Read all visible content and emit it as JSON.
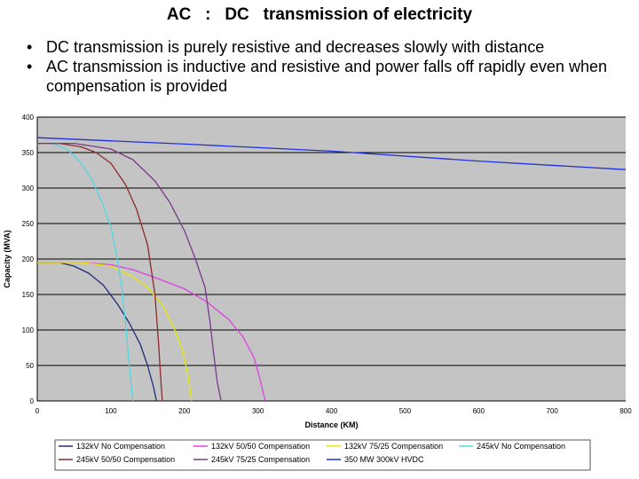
{
  "slide": {
    "title": "AC   :   DC   transmission of electricity",
    "bullets": [
      "DC transmission is purely resistive and decreases slowly with distance",
      "AC transmission is inductive and resistive and power falls off rapidly even when compensation is provided"
    ]
  },
  "chart_data": {
    "type": "line",
    "title": "",
    "xlabel": "Distance (KM)",
    "ylabel": "Capacity (MVA)",
    "xlim": [
      0,
      800
    ],
    "ylim": [
      0,
      400
    ],
    "xticks": [
      0,
      100,
      200,
      300,
      400,
      500,
      600,
      700,
      800
    ],
    "yticks": [
      0,
      50,
      100,
      150,
      200,
      250,
      300,
      350,
      400
    ],
    "grid": "horizontal",
    "legend": "bottom",
    "series": [
      {
        "name": "132kV No Compensation",
        "color": "#1f2d7a",
        "x": [
          0,
          30,
          50,
          70,
          90,
          110,
          125,
          140,
          150,
          158,
          162
        ],
        "y": [
          195,
          195,
          190,
          180,
          163,
          135,
          110,
          80,
          50,
          20,
          0
        ]
      },
      {
        "name": "132kV 50/50 Compensation",
        "color": "#e040e0",
        "x": [
          0,
          60,
          100,
          130,
          170,
          200,
          230,
          260,
          280,
          295,
          303,
          310
        ],
        "y": [
          195,
          195,
          192,
          185,
          170,
          158,
          140,
          115,
          90,
          60,
          30,
          0
        ]
      },
      {
        "name": "132kV 75/25 Compensation",
        "color": "#e8e800",
        "x": [
          0,
          60,
          100,
          130,
          150,
          170,
          185,
          198,
          205,
          210
        ],
        "y": [
          195,
          195,
          190,
          175,
          160,
          135,
          105,
          70,
          35,
          0
        ]
      },
      {
        "name": "245kV No Compensation",
        "color": "#50d8e0",
        "x": [
          0,
          20,
          40,
          60,
          75,
          90,
          100,
          108,
          115,
          120,
          125,
          130
        ],
        "y": [
          363,
          363,
          355,
          335,
          310,
          275,
          245,
          205,
          160,
          110,
          50,
          0
        ]
      },
      {
        "name": "245kV 50/50 Compensation",
        "color": "#8b2b2b",
        "x": [
          0,
          30,
          60,
          80,
          100,
          120,
          135,
          150,
          160,
          165,
          168,
          170
        ],
        "y": [
          363,
          363,
          358,
          350,
          335,
          305,
          270,
          220,
          150,
          80,
          30,
          0
        ]
      },
      {
        "name": "245kV 75/25 Compensation",
        "color": "#7a3a8a",
        "x": [
          0,
          50,
          100,
          130,
          160,
          180,
          200,
          215,
          228,
          235,
          240,
          245,
          250
        ],
        "y": [
          363,
          363,
          355,
          340,
          310,
          280,
          240,
          200,
          160,
          110,
          65,
          25,
          0
        ]
      },
      {
        "name": "350 MW 300kV HVDC",
        "color": "#2030e0",
        "x": [
          0,
          200,
          400,
          600,
          800
        ],
        "y": [
          371,
          362,
          352,
          338,
          326
        ]
      }
    ]
  }
}
